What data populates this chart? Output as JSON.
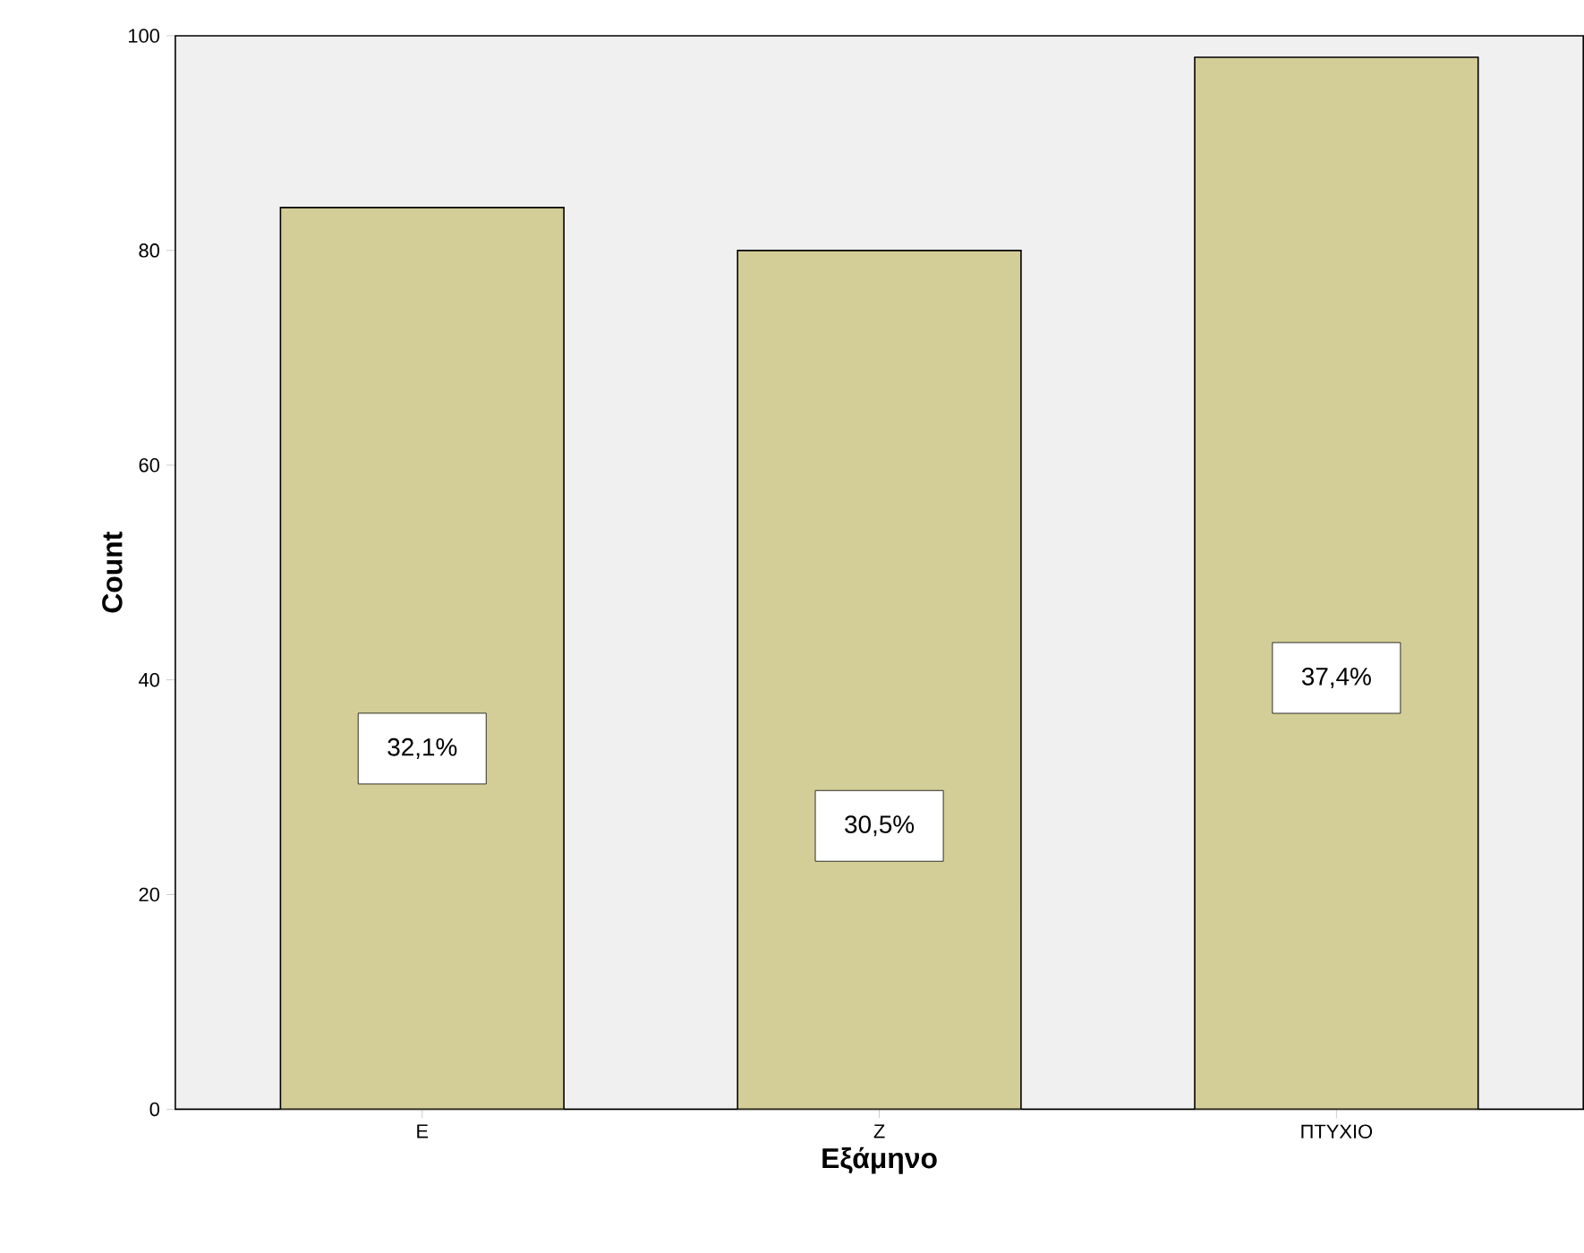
{
  "chart_data": {
    "type": "bar",
    "xlabel": "Εξάμηνο",
    "ylabel": "Count",
    "categories": [
      "Ε",
      "Ζ",
      "ΠΤΥΧΙΟ"
    ],
    "values": [
      84,
      80,
      98
    ],
    "annotations": [
      "32,1%",
      "30,5%",
      "37,4%"
    ],
    "color": "#d3ce97",
    "ylim": [
      0,
      100
    ],
    "yticks": [
      0,
      20,
      40,
      60,
      80,
      100
    ],
    "grid": false
  }
}
